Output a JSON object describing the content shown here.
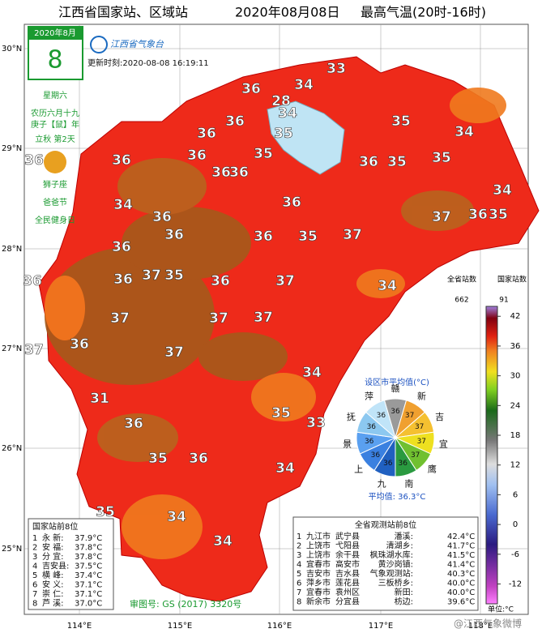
{
  "header": {
    "title_region": "江西省国家站、区域站",
    "title_date": "2020年08月08日",
    "title_element": "最高气温(20时-16时)"
  },
  "calendar": {
    "month": "2020年8月",
    "day": "8",
    "weekday": "星期六",
    "lunar": "农历六月十九",
    "year_name": "庚子【鼠】年",
    "solar_term": "立秋  第2天",
    "zodiac": "狮子座",
    "festival_1": "爸爸节",
    "festival_2": "全民健身日"
  },
  "logo": "江西省气象台",
  "update_time": "更新时刻:2020-08-08  16:19:11",
  "latitude_labels": [
    "30°N",
    "29°N",
    "28°N",
    "27°N",
    "26°N",
    "25°N"
  ],
  "longitude_labels": [
    "114°E",
    "115°E",
    "116°E",
    "117°E",
    "118°E"
  ],
  "map_labels": [
    "34",
    "33",
    "28",
    "34",
    "36",
    "36",
    "35",
    "35",
    "34",
    "36",
    "36",
    "35",
    "36",
    "35",
    "35",
    "36",
    "36",
    "36",
    "36",
    "34",
    "34",
    "36",
    "36",
    "36",
    "37",
    "36",
    "35",
    "36",
    "36",
    "35",
    "37",
    "36",
    "36",
    "37",
    "35",
    "36",
    "37",
    "34",
    "37",
    "37",
    "37",
    "37",
    "36",
    "37",
    "34",
    "31",
    "36",
    "35",
    "33",
    "36",
    "35",
    "34",
    "35",
    "34",
    "34"
  ],
  "pie": {
    "title": "设区市平均值(°C)",
    "average": "平均值: 36.3°C",
    "cities": [
      {
        "name": "赣",
        "value": 36,
        "color": "#9a9a9a"
      },
      {
        "name": "新",
        "value": 37,
        "color": "#f0a030"
      },
      {
        "name": "吉",
        "value": 37,
        "color": "#f5c030"
      },
      {
        "name": "宜",
        "value": 37,
        "color": "#eee020"
      },
      {
        "name": "鹰",
        "value": 37,
        "color": "#70c030"
      },
      {
        "name": "南",
        "value": 36,
        "color": "#2a9a40"
      },
      {
        "name": "九",
        "value": 36,
        "color": "#2060c0"
      },
      {
        "name": "上",
        "value": 36,
        "color": "#3a80e0"
      },
      {
        "name": "景",
        "value": 36,
        "color": "#5aa0f0"
      },
      {
        "name": "抚",
        "value": 36,
        "color": "#8cc8f0"
      },
      {
        "name": "萍",
        "value": 36,
        "color": "#c0e4f8"
      }
    ]
  },
  "colorbar": {
    "header_all": "全省站数",
    "count_all": "662",
    "header_national": "国家站数",
    "count_national": "91",
    "range": [
      -16,
      44
    ],
    "ticks": [
      42,
      36,
      30,
      24,
      18,
      12,
      6,
      0,
      -6,
      -12
    ],
    "unit": "单位:°C"
  },
  "national_top8": {
    "title": "国家站前8位",
    "rows": [
      [
        "1",
        "永  新:",
        "37.9°C"
      ],
      [
        "2",
        "安  福:",
        "37.8°C"
      ],
      [
        "3",
        "分  宜:",
        "37.8°C"
      ],
      [
        "4",
        "吉安县:",
        "37.5°C"
      ],
      [
        "5",
        "横  峰:",
        "37.4°C"
      ],
      [
        "6",
        "安  义:",
        "37.1°C"
      ],
      [
        "7",
        "崇  仁:",
        "37.1°C"
      ],
      [
        "8",
        "芦  溪:",
        "37.0°C"
      ]
    ]
  },
  "province_top8": {
    "title": "全省观测站前8位",
    "rows": [
      [
        "1",
        "九江市",
        "武宁县",
        "潘溪:",
        "42.4°C"
      ],
      [
        "2",
        "上饶市",
        "弋阳县",
        "清湖乡:",
        "41.7°C"
      ],
      [
        "3",
        "上饶市",
        "余干县",
        "枫珠湖水库:",
        "41.5°C"
      ],
      [
        "4",
        "宜春市",
        "高安市",
        "黄沙岗镇:",
        "41.4°C"
      ],
      [
        "5",
        "吉安市",
        "吉水县",
        "气象观测站:",
        "40.3°C"
      ],
      [
        "6",
        "萍乡市",
        "莲花县",
        "三板桥乡:",
        "40.0°C"
      ],
      [
        "7",
        "宜春市",
        "袁州区",
        "新田:",
        "40.0°C"
      ],
      [
        "8",
        "新余市",
        "分宜县",
        "枋边:",
        "39.6°C"
      ]
    ]
  },
  "review_number": "审图号: GS (2017) 3320号",
  "watermark": "@江西气象微博"
}
